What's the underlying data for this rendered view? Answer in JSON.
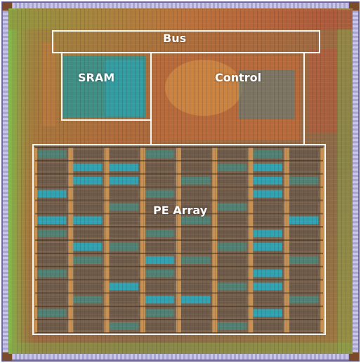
{
  "image": {
    "subject": "chip-die-photo",
    "palette": {
      "base_orange": "#b8763c",
      "metal_gold": "#e3a052",
      "cyan_block": "#2aa6b8",
      "teal_block": "#3d8f85",
      "pad_ring_lavender": "#a8a4d6",
      "edge_green": "#8bc34a",
      "dark_trace": "#3b2a1f",
      "outline": "#ffffff"
    }
  },
  "regions": [
    {
      "id": "bus",
      "label": "Bus"
    },
    {
      "id": "sram",
      "label": "SRAM"
    },
    {
      "id": "control",
      "label": "Control"
    },
    {
      "id": "pe_array",
      "label": "PE Array"
    }
  ]
}
